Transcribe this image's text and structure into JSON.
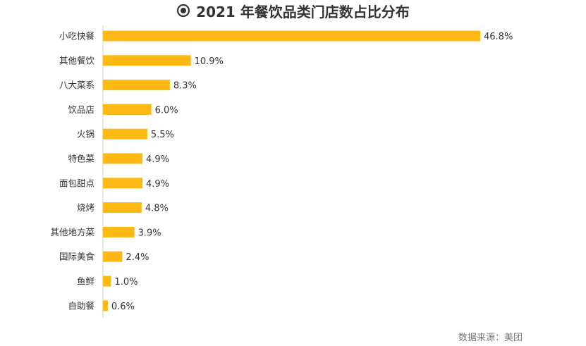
{
  "title": "2021 年餐饮品类门店数占比分布",
  "source": "数据来源：美团",
  "colors": {
    "bar": "#FDB813",
    "axis": "#D0D0D0",
    "text": "#333333"
  },
  "chart_data": {
    "type": "bar",
    "orientation": "horizontal",
    "title": "2021 年餐饮品类门店数占比分布",
    "xlabel": "",
    "ylabel": "",
    "unit": "%",
    "grid": false,
    "categories": [
      "小吃快餐",
      "其他餐饮",
      "八大菜系",
      "饮品店",
      "火锅",
      "特色菜",
      "面包甜点",
      "烧烤",
      "其他地方菜",
      "国际美食",
      "鱼鲜",
      "自助餐"
    ],
    "values": [
      46.8,
      10.9,
      8.3,
      6.0,
      5.5,
      4.9,
      4.9,
      4.8,
      3.9,
      2.4,
      1.0,
      0.6
    ],
    "value_labels": [
      "46.8%",
      "10.9%",
      "8.3%",
      "6.0%",
      "5.5%",
      "4.9%",
      "4.9%",
      "4.8%",
      "3.9%",
      "2.4%",
      "1.0%",
      "0.6%"
    ],
    "xlim": [
      0,
      46.8
    ]
  }
}
